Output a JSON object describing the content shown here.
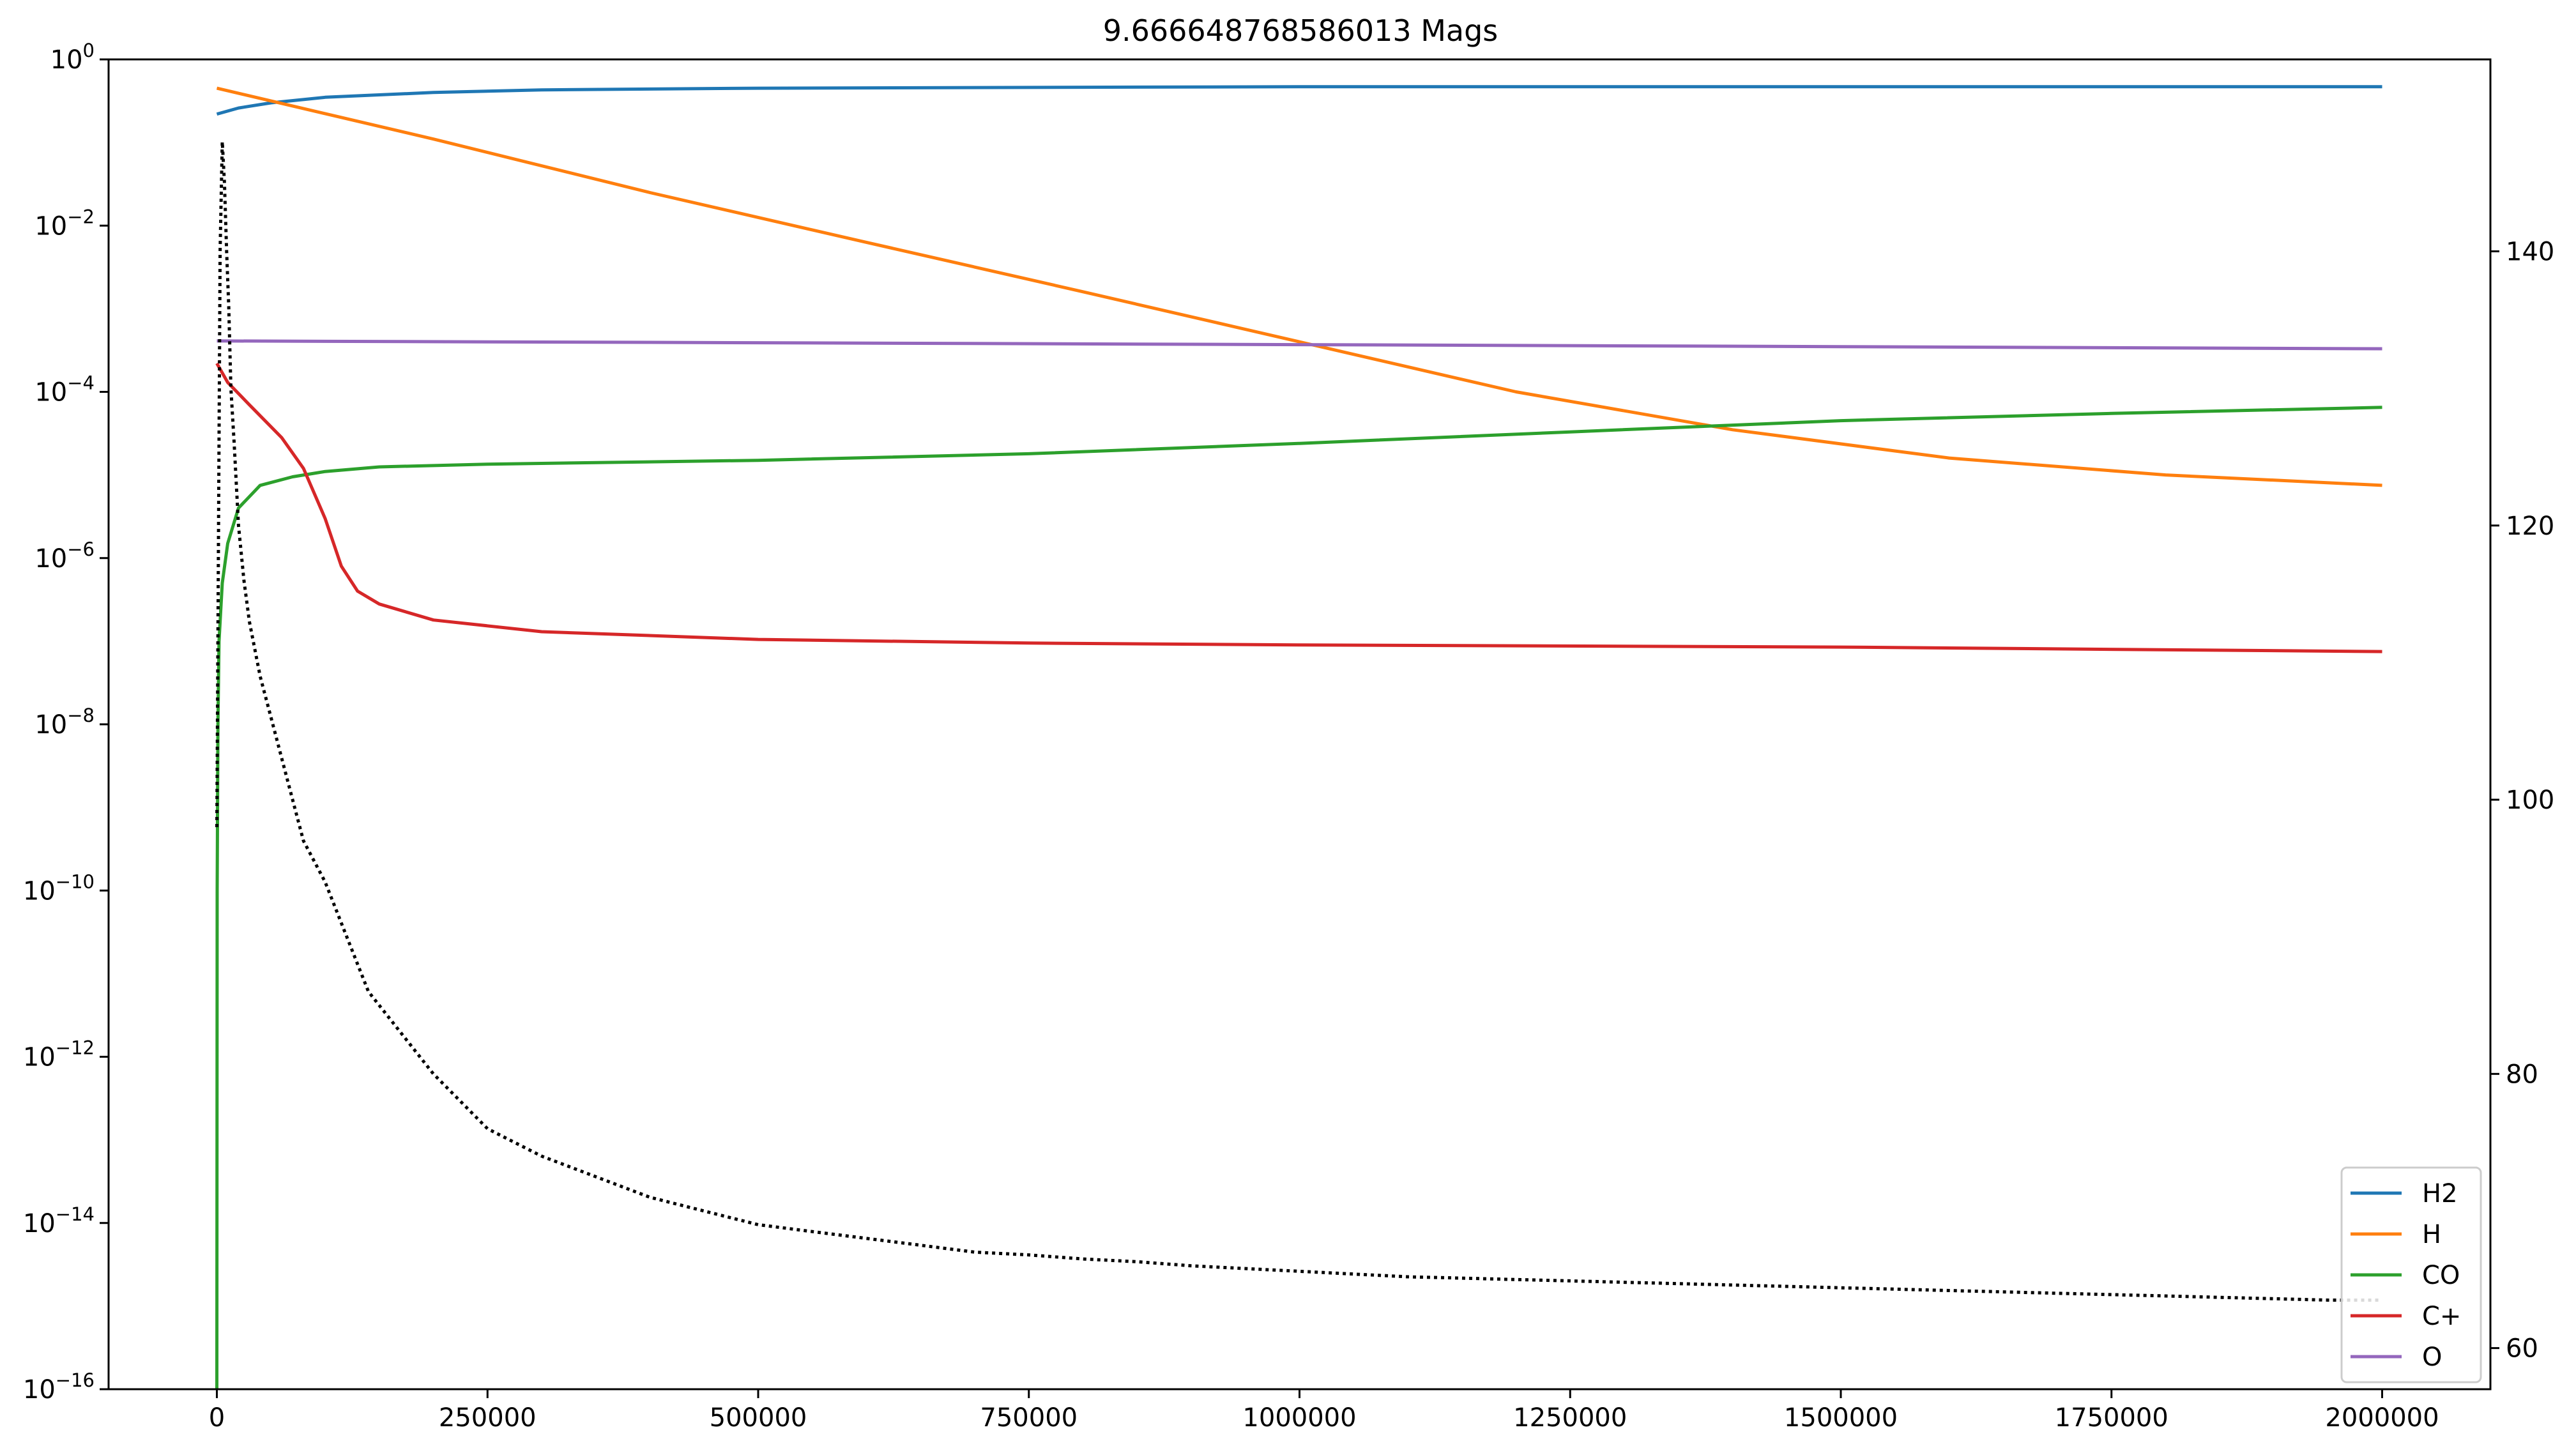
{
  "chart_data": {
    "type": "line",
    "title": "9.666648768586013 Mags",
    "xlabel": "",
    "ylabel": "",
    "y2label": "",
    "xlim": [
      -100000,
      2100000
    ],
    "ylim_log10": [
      -16,
      0
    ],
    "y2lim": [
      57,
      154
    ],
    "yscale": "log",
    "grid": false,
    "legend_position": "lower-right",
    "x_ticks": [
      0,
      250000,
      500000,
      750000,
      1000000,
      1250000,
      1500000,
      1750000,
      2000000
    ],
    "x_tick_labels": [
      "0",
      "250000",
      "500000",
      "750000",
      "1000000",
      "1250000",
      "1500000",
      "1750000",
      "2000000"
    ],
    "y_ticks": [
      {
        "base": "10",
        "exp": "0",
        "log": 0
      },
      {
        "base": "10",
        "exp": "−2",
        "log": -2
      },
      {
        "base": "10",
        "exp": "−4",
        "log": -4
      },
      {
        "base": "10",
        "exp": "−6",
        "log": -6
      },
      {
        "base": "10",
        "exp": "−8",
        "log": -8
      },
      {
        "base": "10",
        "exp": "−10",
        "log": -10
      },
      {
        "base": "10",
        "exp": "−12",
        "log": -12
      },
      {
        "base": "10",
        "exp": "−14",
        "log": -14
      },
      {
        "base": "10",
        "exp": "−16",
        "log": -16
      }
    ],
    "y2_ticks": [
      60,
      80,
      100,
      120,
      140
    ],
    "y2_tick_labels": [
      "60",
      "80",
      "100",
      "120",
      "140"
    ],
    "series": [
      {
        "name": "H2",
        "color": "#1f77b4",
        "style": "solid",
        "axis": "left",
        "x": [
          0,
          20000,
          50000,
          100000,
          200000,
          300000,
          500000,
          750000,
          1000000,
          1500000,
          2000000
        ],
        "y": [
          0.22,
          0.26,
          0.3,
          0.35,
          0.4,
          0.43,
          0.45,
          0.46,
          0.47,
          0.47,
          0.47
        ]
      },
      {
        "name": "H",
        "color": "#ff7f0e",
        "style": "solid",
        "axis": "left",
        "x": [
          0,
          200000,
          400000,
          600000,
          800000,
          1000000,
          1200000,
          1400000,
          1600000,
          1800000,
          2000000
        ],
        "y": [
          0.45,
          0.11,
          0.025,
          0.0063,
          0.0016,
          0.0004,
          0.0001,
          3.5e-05,
          1.6e-05,
          1e-05,
          7.5e-06
        ]
      },
      {
        "name": "CO",
        "color": "#2ca02c",
        "style": "solid",
        "axis": "left",
        "x": [
          0,
          300,
          1000,
          2000,
          5000,
          10000,
          20000,
          40000,
          70000,
          100000,
          150000,
          250000,
          500000,
          750000,
          1000000,
          1250000,
          1500000,
          1750000,
          2000000
        ],
        "y": [
          1e-16,
          1e-10,
          1e-08,
          1e-07,
          5e-07,
          1.5e-06,
          4e-06,
          7.5e-06,
          9.5e-06,
          1.1e-05,
          1.25e-05,
          1.35e-05,
          1.5e-05,
          1.8e-05,
          2.4e-05,
          3.3e-05,
          4.5e-05,
          5.5e-05,
          6.5e-05
        ]
      },
      {
        "name": "C+",
        "color": "#d62728",
        "style": "solid",
        "axis": "left",
        "x": [
          0,
          10000,
          30000,
          60000,
          80000,
          100000,
          115000,
          130000,
          150000,
          200000,
          300000,
          500000,
          750000,
          1000000,
          1500000,
          2000000
        ],
        "y": [
          0.00022,
          0.00013,
          7e-05,
          2.8e-05,
          1.2e-05,
          3e-06,
          8e-07,
          4e-07,
          2.8e-07,
          1.8e-07,
          1.3e-07,
          1.05e-07,
          9.5e-08,
          9e-08,
          8.5e-08,
          7.5e-08
        ]
      },
      {
        "name": "O",
        "color": "#9467bd",
        "style": "solid",
        "axis": "left",
        "x": [
          0,
          500000,
          1000000,
          1500000,
          2000000
        ],
        "y": [
          0.00041,
          0.00039,
          0.00037,
          0.00035,
          0.00033
        ]
      },
      {
        "name": "",
        "color": "#000000",
        "style": "dotted",
        "axis": "right",
        "x": [
          0,
          3000,
          5000,
          7000,
          9000,
          11000,
          13000,
          16000,
          20000,
          25000,
          30000,
          40000,
          50000,
          60000,
          70000,
          80000,
          100000,
          120000,
          140000,
          170000,
          200000,
          250000,
          300000,
          350000,
          400000,
          450000,
          500000,
          550000,
          600000,
          650000,
          700000,
          750000,
          800000,
          850000,
          900000,
          950000,
          1000000,
          1050000,
          1100000,
          1150000,
          1200000,
          1250000,
          1300000,
          1350000,
          1400000,
          1450000,
          1500000,
          1550000,
          1600000,
          1650000,
          1700000,
          1750000,
          1800000,
          1850000,
          1900000,
          1950000,
          2000000
        ],
        "y": [
          98,
          140,
          148,
          145,
          140,
          136,
          130,
          126,
          120,
          116,
          113,
          109,
          106,
          103,
          100,
          97,
          94,
          90,
          86,
          83,
          80,
          76,
          74,
          72.5,
          71,
          70,
          69,
          68.5,
          68,
          67.5,
          67,
          66.8,
          66.5,
          66.3,
          66,
          65.8,
          65.6,
          65.4,
          65.2,
          65.1,
          65,
          64.9,
          64.8,
          64.7,
          64.6,
          64.5,
          64.4,
          64.3,
          64.2,
          64.1,
          64,
          63.9,
          63.8,
          63.7,
          63.6,
          63.5,
          63.5
        ]
      }
    ]
  }
}
